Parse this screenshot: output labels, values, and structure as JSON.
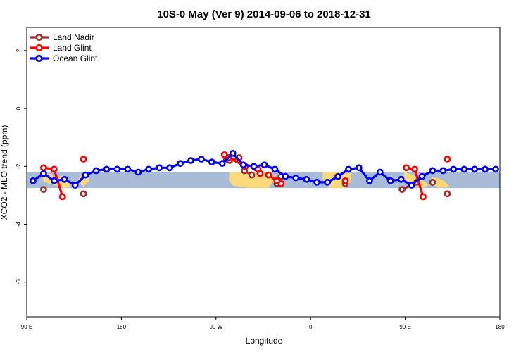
{
  "chart_data": {
    "type": "line",
    "title": "10S-0 May (Ver 9)   2014-09-06 to 2018-12-31",
    "xlabel": "Longitude",
    "ylabel": "XCO2 - MLO trend (ppm)",
    "xlim": [
      90,
      540
    ],
    "ylim": [
      -7.2,
      2.8
    ],
    "x_ticks": [
      {
        "value": 90,
        "label": "90 E"
      },
      {
        "value": 180,
        "label": "180"
      },
      {
        "value": 270,
        "label": "90 W"
      },
      {
        "value": 360,
        "label": "0"
      },
      {
        "value": 450,
        "label": "90 E"
      },
      {
        "value": 540,
        "label": "180"
      }
    ],
    "y_ticks": [
      {
        "value": 2,
        "label": "2"
      },
      {
        "value": 0,
        "label": "0"
      },
      {
        "value": -2,
        "label": "-2"
      },
      {
        "value": -4,
        "label": "-4"
      },
      {
        "value": -6,
        "label": "-6"
      }
    ],
    "map_band": {
      "lat_range": [
        -10,
        0
      ],
      "y_range": [
        -2.75,
        -2.2
      ],
      "ocean_color": "#a8bcd8",
      "land_color": "#fcd97a"
    },
    "legend_position": "top-left",
    "series": [
      {
        "name": "Land Nadir",
        "color": "#a52a2a",
        "x": [
          106,
          144,
          280,
          283,
          292,
          297,
          304,
          328,
          332,
          393,
          447,
          461,
          476,
          490
        ],
        "y": [
          -2.8,
          -2.95,
          -1.75,
          -1.8,
          -1.7,
          -2.15,
          -2.3,
          -2.6,
          -2.35,
          -2.6,
          -2.8,
          -2.55,
          -2.55,
          -2.95
        ],
        "segments": [
          [
            0,
            0
          ],
          [
            1,
            1
          ],
          [
            2,
            6
          ],
          [
            7,
            8
          ],
          [
            9,
            9
          ],
          [
            10,
            11
          ],
          [
            12,
            12
          ],
          [
            13,
            13
          ]
        ]
      },
      {
        "name": "Land Glint",
        "color": "#ff0000",
        "x": [
          106,
          116,
          124,
          144,
          278,
          282,
          298,
          308,
          310,
          312,
          320,
          328,
          332,
          393,
          451,
          459,
          467,
          490
        ],
        "y": [
          -2.05,
          -2.1,
          -3.05,
          -1.75,
          -1.6,
          -1.7,
          -2.0,
          -2.05,
          -2.1,
          -2.25,
          -2.3,
          -2.5,
          -2.6,
          -2.5,
          -2.05,
          -2.1,
          -3.05,
          -1.75
        ],
        "segments": [
          [
            0,
            2
          ],
          [
            3,
            3
          ],
          [
            4,
            6
          ],
          [
            7,
            9
          ],
          [
            10,
            12
          ],
          [
            13,
            13
          ],
          [
            14,
            16
          ],
          [
            17,
            17
          ]
        ]
      },
      {
        "name": "Ocean Glint",
        "color": "#0000ff",
        "x": [
          96,
          106,
          116,
          126,
          136,
          146,
          156,
          166,
          176,
          186,
          196,
          206,
          216,
          226,
          236,
          246,
          256,
          266,
          276,
          286,
          296,
          306,
          316,
          326,
          336,
          346,
          356,
          366,
          376,
          386,
          396,
          406,
          416,
          426,
          436,
          446,
          456,
          466,
          476,
          486,
          496,
          506,
          516,
          526,
          536
        ],
        "y": [
          -2.5,
          -2.25,
          -2.5,
          -2.45,
          -2.65,
          -2.3,
          -2.15,
          -2.1,
          -2.1,
          -2.1,
          -2.2,
          -2.1,
          -2.05,
          -2.05,
          -1.9,
          -1.8,
          -1.75,
          -1.85,
          -1.9,
          -1.75,
          -1.95,
          -2.0,
          -1.95,
          -2.1,
          -2.35,
          -2.4,
          -2.45,
          -2.55,
          -2.55,
          -2.35,
          -2.1,
          -2.05,
          -2.5,
          -2.2,
          -2.5,
          -2.45,
          -2.65,
          -2.35,
          -2.15,
          -2.15,
          -2.1,
          -2.1,
          -2.1,
          -2.1,
          -2.1
        ],
        "y_override": {
          "19": -1.55
        }
      }
    ]
  }
}
